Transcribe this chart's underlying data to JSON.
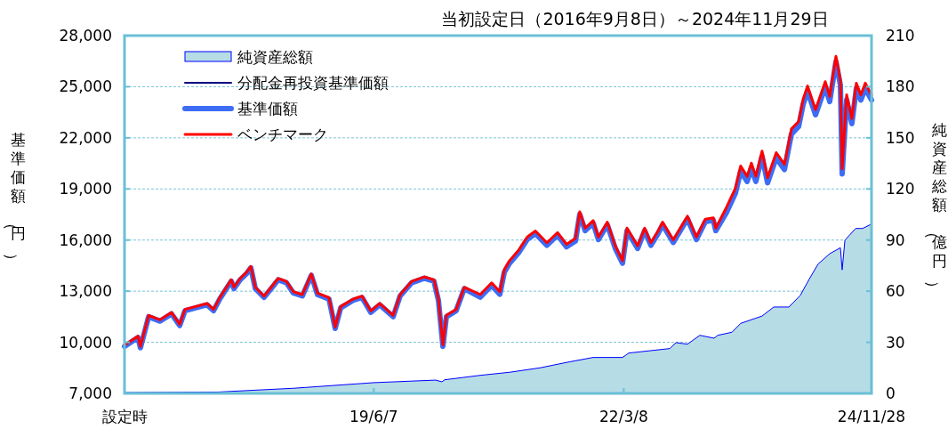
{
  "chart_data": {
    "type": "line",
    "title": "当初設定日（2016年9月8日）～2024年11月29日",
    "ylabel": "基準価額（円）",
    "y2label": "純資産総額（億円）",
    "x": [
      "2016-09-08",
      "2016-11-01",
      "2016-11-11",
      "2016-12-14",
      "2017-01-29",
      "2017-03-16",
      "2017-04-18",
      "2017-05-09",
      "2017-06-21",
      "2017-08-06",
      "2017-09-01",
      "2017-09-26",
      "2017-11-11",
      "2017-11-22",
      "2017-12-17",
      "2018-01-11",
      "2018-01-29",
      "2018-02-16",
      "2018-03-23",
      "2018-05-19",
      "2018-06-21",
      "2018-07-19",
      "2018-08-24",
      "2018-09-29",
      "2018-10-24",
      "2018-12-09",
      "2019-01-03",
      "2019-01-25",
      "2019-03-16",
      "2019-04-21",
      "2019-05-26",
      "2019-07-01",
      "2019-08-24",
      "2019-09-21",
      "2019-11-07",
      "2019-12-27",
      "2020-02-04",
      "2020-02-22",
      "2020-03-11",
      "2020-03-25",
      "2020-05-03",
      "2020-06-05",
      "2020-08-08",
      "2020-09-23",
      "2020-10-26",
      "2020-11-13",
      "2020-12-04",
      "2021-01-09",
      "2021-02-13",
      "2021-03-18",
      "2021-05-03",
      "2021-06-15",
      "2021-07-21",
      "2021-08-26",
      "2021-09-12",
      "2021-10-04",
      "2021-11-05",
      "2021-11-26",
      "2022-01-01",
      "2022-02-02",
      "2022-03-03",
      "2022-03-21",
      "2022-05-03",
      "2022-05-31",
      "2022-06-25",
      "2022-07-24",
      "2022-08-11",
      "2022-09-23",
      "2022-11-19",
      "2022-12-25",
      "2023-01-30",
      "2023-03-03",
      "2023-03-13",
      "2023-04-25",
      "2023-05-31",
      "2023-06-21",
      "2023-07-17",
      "2023-08-03",
      "2023-08-21",
      "2023-09-15",
      "2023-10-07",
      "2023-11-11",
      "2023-12-14",
      "2024-01-11",
      "2024-02-09",
      "2024-02-27",
      "2024-03-16",
      "2024-04-17",
      "2024-05-26",
      "2024-06-13",
      "2024-07-08",
      "2024-07-26",
      "2024-08-02",
      "2024-08-20",
      "2024-09-10",
      "2024-09-28",
      "2024-10-16",
      "2024-11-03",
      "2024-11-28"
    ],
    "series": [
      {
        "name": "純資産総額",
        "type": "area",
        "axis": "y2",
        "color": "#b6dce6",
        "x": [
          "2016-09-08",
          "2017-09-18",
          "2018-07-19",
          "2019-06-06",
          "2020-02-11",
          "2020-03-07",
          "2020-03-18",
          "2020-08-08",
          "2020-12-04",
          "2021-04-05",
          "2021-08-01",
          "2021-11-05",
          "2022-03-03",
          "2022-03-28",
          "2022-09-09",
          "2022-10-04",
          "2022-11-19",
          "2023-01-08",
          "2023-03-06",
          "2023-03-21",
          "2023-05-17",
          "2023-06-21",
          "2023-09-15",
          "2023-11-01",
          "2024-01-01",
          "2024-02-16",
          "2024-03-23",
          "2024-04-27",
          "2024-06-13",
          "2024-07-26",
          "2024-08-02",
          "2024-08-13",
          "2024-09-25",
          "2024-10-23",
          "2024-11-28"
        ],
        "values": [
          0.5,
          0.8,
          3,
          6.3,
          7.8,
          6.8,
          8,
          10.6,
          12.4,
          15,
          18.5,
          21.1,
          21.1,
          23.7,
          26.3,
          29.8,
          28.9,
          34.1,
          32.4,
          34.1,
          35.9,
          41.1,
          45.4,
          50.7,
          50.7,
          57.6,
          67.2,
          75.9,
          82,
          85.5,
          72.5,
          89.9,
          96.8,
          96.8,
          99.4
        ]
      },
      {
        "name": "分配金再投資基準価額",
        "color": "#000080",
        "values": [
          null,
          null,
          null,
          null,
          null,
          null,
          null,
          null,
          null,
          null,
          null,
          null,
          null,
          null,
          null,
          null,
          null,
          null,
          null,
          null,
          null,
          null,
          null,
          null,
          null,
          null,
          null,
          null,
          null,
          null,
          null,
          null,
          null,
          null,
          null,
          null,
          null,
          null,
          null,
          null,
          null,
          null,
          null,
          null,
          null,
          null,
          null,
          null,
          null,
          null,
          null,
          null,
          null,
          null,
          null,
          null,
          null,
          null,
          null,
          null,
          null,
          null,
          null,
          null,
          null,
          null,
          null,
          null,
          null,
          null,
          null,
          null,
          null,
          null,
          null,
          null,
          null,
          null,
          null,
          null,
          null,
          null,
          null,
          null,
          null,
          null,
          null,
          null,
          null,
          null,
          null,
          null,
          null,
          null,
          null,
          null,
          null,
          null,
          null
        ]
      },
      {
        "name": "基準価額",
        "color": "#3d6cf5",
        "values": [
          9760,
          10280,
          9680,
          11500,
          11240,
          11670,
          10980,
          11850,
          12020,
          12200,
          11850,
          12540,
          13590,
          13150,
          13670,
          14020,
          14370,
          13150,
          12630,
          13670,
          13500,
          12890,
          12720,
          13930,
          12800,
          12540,
          10810,
          12020,
          12460,
          12630,
          11760,
          12200,
          11500,
          12720,
          13500,
          13760,
          13590,
          12460,
          9760,
          11500,
          11850,
          13150,
          12650,
          13340,
          12820,
          14120,
          14640,
          15250,
          16030,
          16380,
          15690,
          16290,
          15600,
          15950,
          17510,
          16550,
          16990,
          16030,
          16900,
          15510,
          14640,
          16550,
          15510,
          16550,
          15690,
          16380,
          16900,
          15860,
          17250,
          16030,
          17080,
          17160,
          16550,
          17620,
          18750,
          20050,
          19440,
          20220,
          19440,
          20920,
          19360,
          20830,
          20140,
          22220,
          22660,
          23960,
          24740,
          23350,
          25000,
          24130,
          26480,
          25090,
          19880,
          24220,
          22830,
          24910,
          24220,
          24910,
          24220
        ]
      },
      {
        "name": "ベンチマーク",
        "color": "#ff0000",
        "values": [
          9840,
          10360,
          9760,
          11580,
          11320,
          11750,
          11060,
          11930,
          12100,
          12280,
          11930,
          12620,
          13670,
          13230,
          13750,
          14100,
          14450,
          13230,
          12710,
          13750,
          13580,
          12970,
          12800,
          14010,
          12880,
          12620,
          10890,
          12100,
          12540,
          12710,
          11840,
          12280,
          11580,
          12800,
          13580,
          13840,
          13670,
          12540,
          9840,
          11580,
          11930,
          13230,
          12800,
          13490,
          12970,
          14270,
          14790,
          15400,
          16180,
          16530,
          15840,
          16440,
          15750,
          16100,
          17660,
          16700,
          17140,
          16180,
          17050,
          15660,
          14790,
          16700,
          15660,
          16700,
          15840,
          16530,
          17050,
          16010,
          17400,
          16180,
          17230,
          17310,
          16700,
          17920,
          19050,
          20350,
          19740,
          20520,
          19740,
          21220,
          19660,
          21130,
          20440,
          22520,
          22960,
          24260,
          25040,
          23650,
          25300,
          24430,
          26780,
          25390,
          20180,
          24520,
          23130,
          25210,
          24520,
          25210,
          24520
        ]
      }
    ],
    "xlim": [
      "2016-09-08",
      "2024-11-28"
    ],
    "xticks": [
      {
        "value": "2016-09-08",
        "label": "設定時"
      },
      {
        "value": "2019-06-07",
        "label": "19/6/7"
      },
      {
        "value": "2022-03-08",
        "label": "22/3/8"
      },
      {
        "value": "2024-11-28",
        "label": "24/11/28"
      }
    ],
    "ylim": [
      7000,
      28000
    ],
    "yticks": [
      {
        "value": 7000,
        "label": "7,000"
      },
      {
        "value": 10000,
        "label": "10,000"
      },
      {
        "value": 13000,
        "label": "13,000"
      },
      {
        "value": 16000,
        "label": "16,000"
      },
      {
        "value": 19000,
        "label": "19,000"
      },
      {
        "value": 22000,
        "label": "22,000"
      },
      {
        "value": 25000,
        "label": "25,000"
      },
      {
        "value": 28000,
        "label": "28,000"
      }
    ],
    "y2lim": [
      0,
      210
    ],
    "y2ticks": [
      0,
      30,
      60,
      90,
      120,
      150,
      180,
      210
    ],
    "grid": "y",
    "legend": "top left"
  }
}
